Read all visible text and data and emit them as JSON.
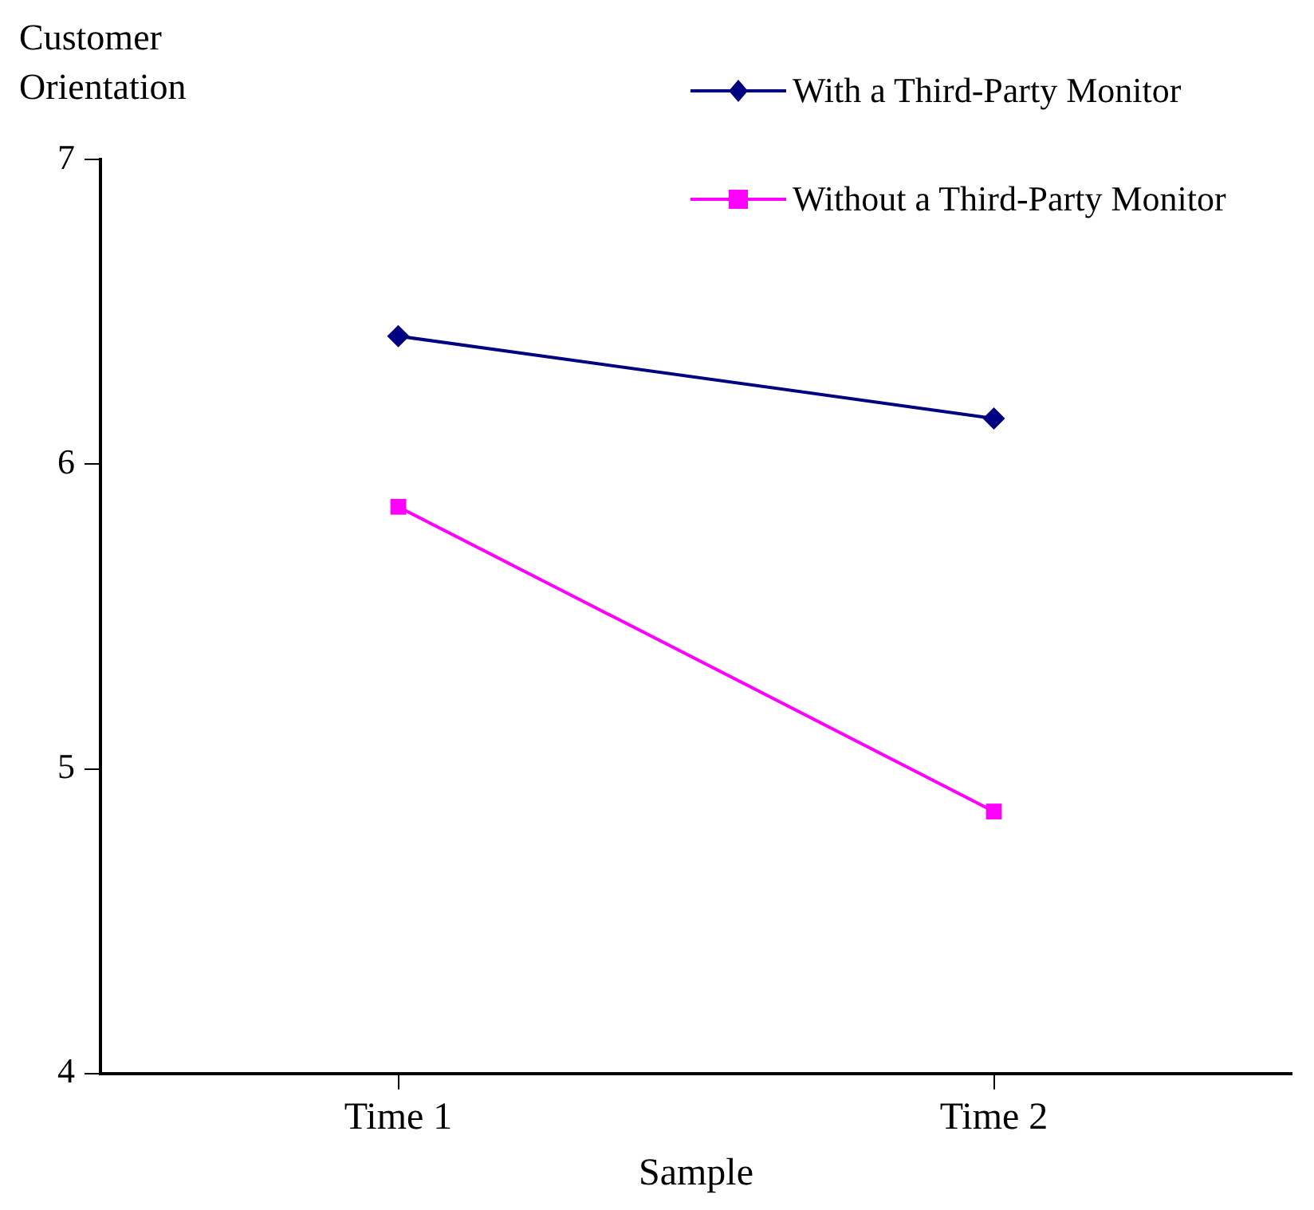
{
  "chart_data": {
    "type": "line",
    "ylabel": "Customer Orientation",
    "xlabel": "Sample",
    "categories": [
      "Time 1",
      "Time 2"
    ],
    "series": [
      {
        "name": "With a Third-Party Monitor",
        "color": "#000080",
        "marker": "diamond",
        "values": [
          6.42,
          6.15
        ]
      },
      {
        "name": "Without a Third-Party Monitor",
        "color": "#ff00ff",
        "marker": "square",
        "values": [
          5.86,
          4.86
        ]
      }
    ],
    "ylim": [
      4,
      7
    ],
    "yticks": [
      4,
      5,
      6,
      7
    ],
    "grid": false,
    "legend": "top right",
    "line_style": "solid"
  }
}
